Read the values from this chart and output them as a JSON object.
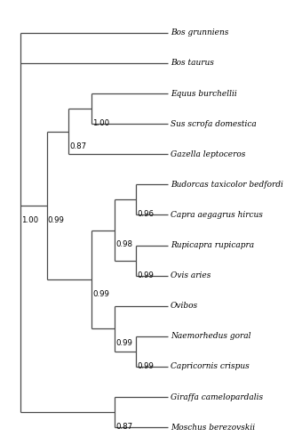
{
  "taxa": [
    "Bos grunniens",
    "Bos taurus",
    "Equus burchellii",
    "Sus scrofa domestica",
    "Gazella leptoceros",
    "Budorcas taxicolor bedfordi",
    "Capra aegagrus hircus",
    "Rupicapra rupicapra",
    "Ovis aries",
    "Ovibos",
    "Naemorhedus goral",
    "Capricornis crispus",
    "Giraffa camelopardalis",
    "Moschus berezovskii"
  ],
  "background": "#ffffff",
  "line_color": "#4a4a4a",
  "text_color": "#000000",
  "font_size": 6.5,
  "label_font_size": 6.2
}
